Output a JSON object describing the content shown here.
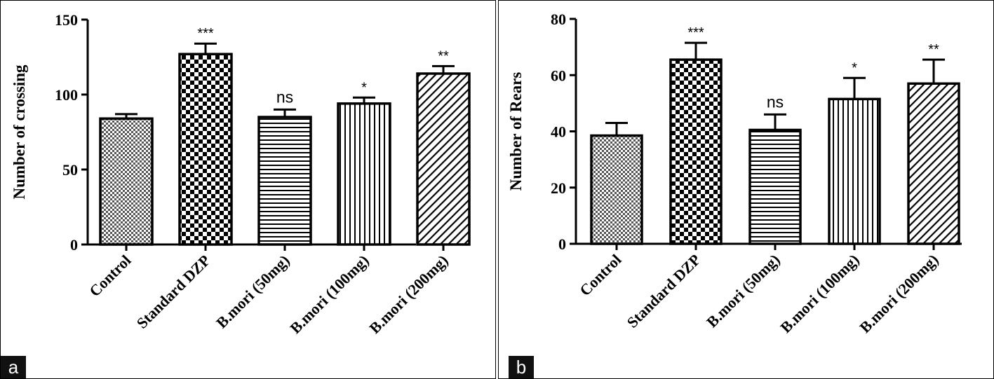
{
  "figure": {
    "panel_labels": [
      "a",
      "b"
    ]
  },
  "chart_data": [
    {
      "type": "bar",
      "panel": "a",
      "ylabel": "Number of crossing",
      "xlabel": "",
      "ylim": [
        0,
        150
      ],
      "yticks": [
        0,
        50,
        100,
        150
      ],
      "categories": [
        "Control",
        "Standard DZP",
        "B.mori (50mg)",
        "B.mori (100mg)",
        "B.mori (200mg)"
      ],
      "values": [
        84,
        127,
        85,
        94,
        114
      ],
      "errors": [
        3,
        7,
        5,
        4,
        5
      ],
      "significance": [
        "",
        "***",
        "ns",
        "*",
        "**"
      ],
      "patterns": [
        "fine-check",
        "checker",
        "horizontal",
        "vertical",
        "diagonal"
      ]
    },
    {
      "type": "bar",
      "panel": "b",
      "ylabel": "Number of Rears",
      "xlabel": "",
      "ylim": [
        0,
        80
      ],
      "yticks": [
        0,
        20,
        40,
        60,
        80
      ],
      "categories": [
        "Control",
        "Standard DZP",
        "B.mori (50mg)",
        "B.mori (100mg)",
        "B.mori (200mg)"
      ],
      "values": [
        38.5,
        65.5,
        40.5,
        51.5,
        57
      ],
      "errors": [
        4.5,
        6,
        5.5,
        7.5,
        8.5
      ],
      "significance": [
        "",
        "***",
        "ns",
        "*",
        "**"
      ],
      "patterns": [
        "fine-check",
        "checker",
        "horizontal",
        "vertical",
        "diagonal"
      ]
    }
  ]
}
